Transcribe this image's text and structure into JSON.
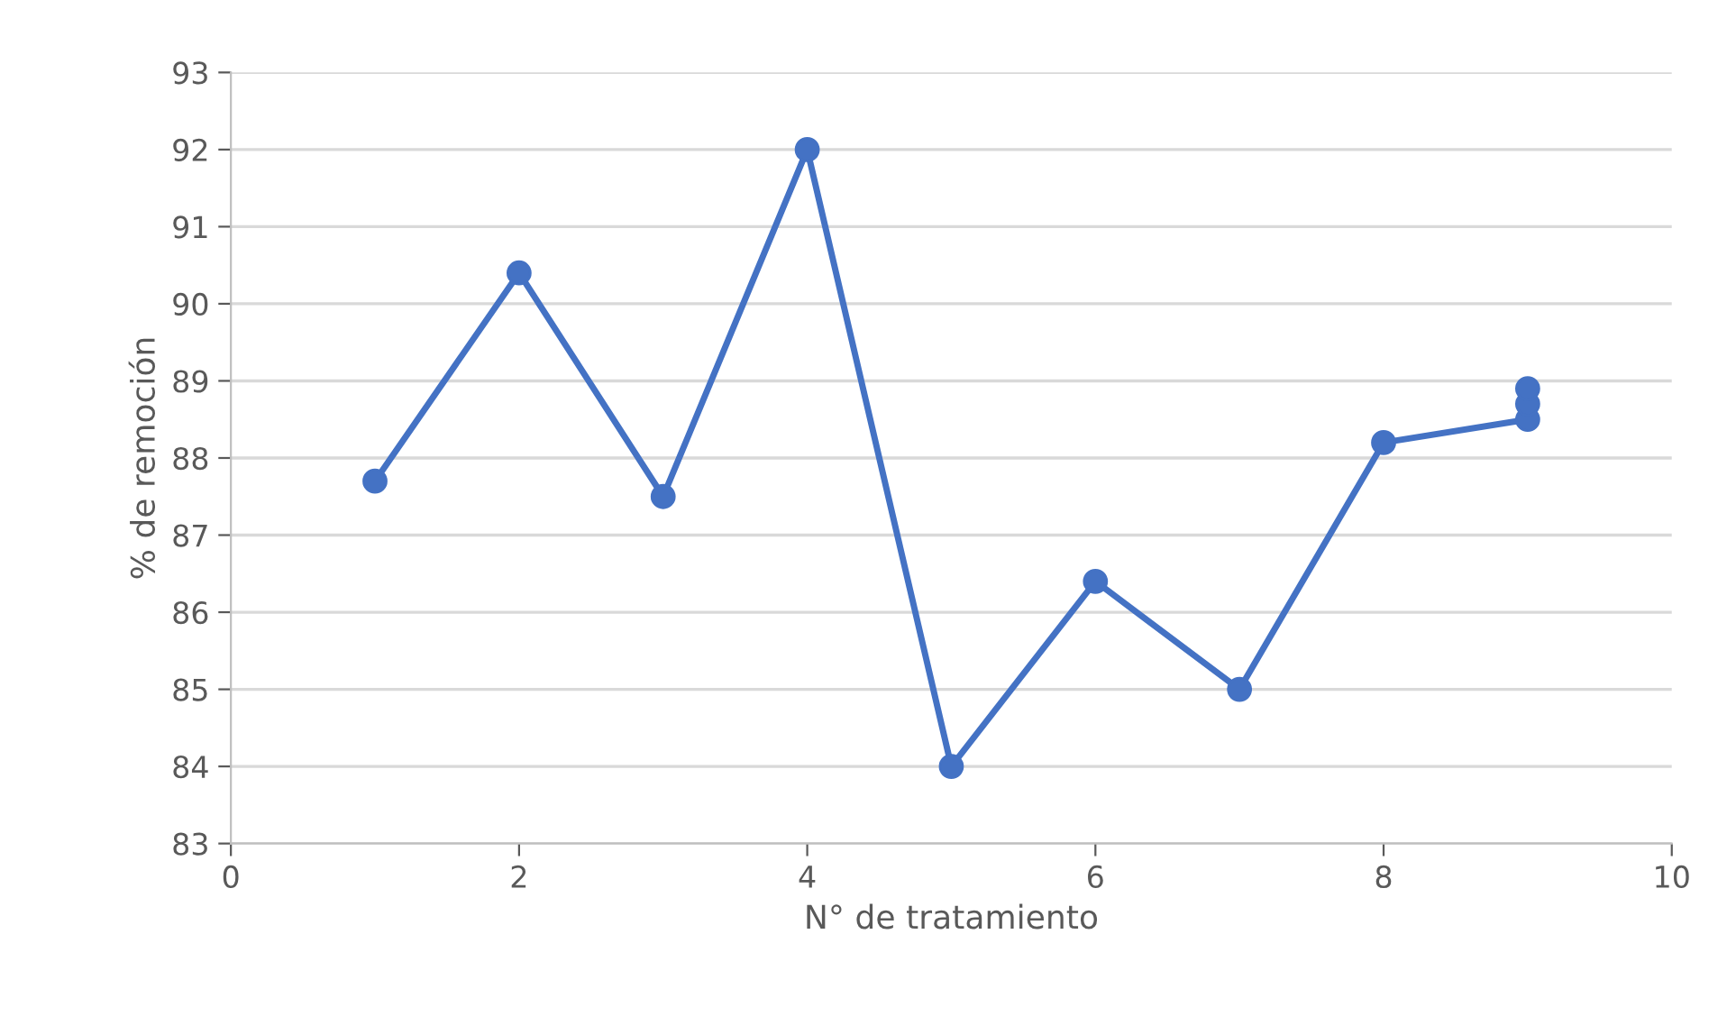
{
  "chart_data": {
    "type": "line",
    "xlabel": "N° de tratamiento",
    "ylabel": "% de remoción",
    "series": [
      {
        "color": "#4472c4",
        "x": [
          1,
          2,
          3,
          4,
          5,
          6,
          7,
          8,
          9,
          9,
          9
        ],
        "values": [
          87.7,
          90.4,
          87.5,
          92.0,
          84.0,
          86.4,
          85.0,
          88.2,
          88.5,
          88.7,
          88.9
        ]
      }
    ],
    "xlim": [
      0,
      10
    ],
    "xticks": [
      0,
      2,
      4,
      6,
      8,
      10
    ],
    "ylim": [
      83,
      93
    ],
    "yticks": [
      83,
      84,
      85,
      86,
      87,
      88,
      89,
      90,
      91,
      92,
      93
    ],
    "grid": "y",
    "marker": "circle",
    "line_style": "solid"
  }
}
